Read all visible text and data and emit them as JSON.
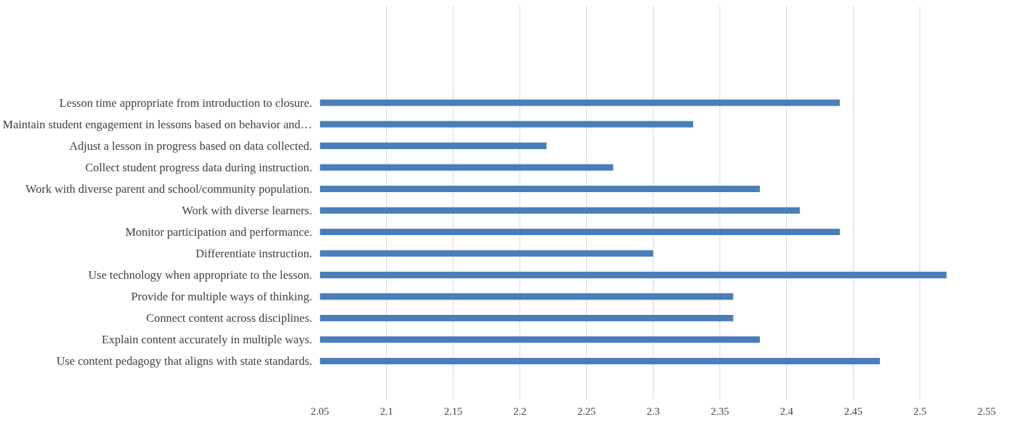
{
  "chart_data": {
    "type": "bar",
    "orientation": "horizontal",
    "categories": [
      "Lesson time appropriate from introduction to closure.",
      "Maintain student engagement in lessons based on behavior and…",
      "Adjust a lesson in progress based on data collected.",
      "Collect student progress data during instruction.",
      "Work with diverse parent and school/community population.",
      "Work with diverse learners.",
      "Monitor participation and performance.",
      "Differentiate instruction.",
      "Use technology when appropriate to the lesson.",
      "Provide for multiple ways of thinking.",
      "Connect content across disciplines.",
      "Explain content accurately in multiple ways.",
      "Use content pedagogy that aligns with state standards."
    ],
    "values": [
      2.44,
      2.33,
      2.22,
      2.27,
      2.38,
      2.41,
      2.44,
      2.3,
      2.52,
      2.36,
      2.36,
      2.38,
      2.47
    ],
    "color": "#4a7ebb",
    "xlim": [
      2.05,
      2.55
    ],
    "xticks": [
      2.05,
      2.1,
      2.15,
      2.2,
      2.25,
      2.3,
      2.35,
      2.4,
      2.45,
      2.5,
      2.55
    ],
    "grid": "x"
  }
}
